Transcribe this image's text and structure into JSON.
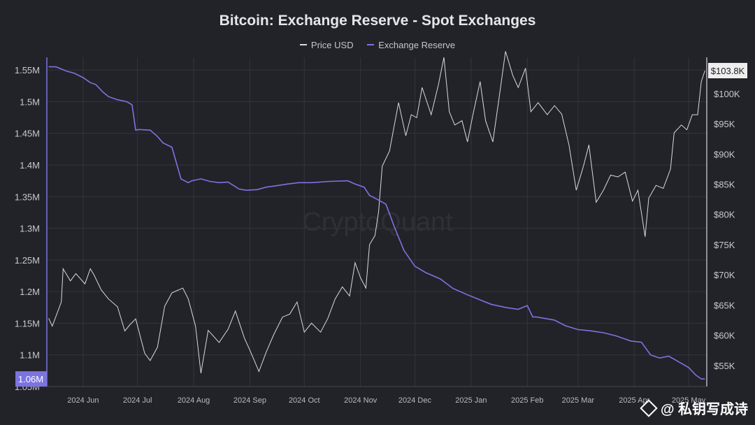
{
  "chart_data": {
    "type": "line",
    "title": "Bitcoin: Exchange Reserve - Spot Exchanges",
    "legend": {
      "placement": "top-center",
      "entries": [
        "Price USD",
        "Exchange Reserve"
      ]
    },
    "colors": {
      "price": "#d9d9dd",
      "reserve": "#7b74e0",
      "background": "#222229",
      "grid": "#34343c"
    },
    "x_ticks": [
      "2024 Jun",
      "2024 Jul",
      "2024 Aug",
      "2024 Sep",
      "2024 Oct",
      "2024 Nov",
      "2024 Dec",
      "2025 Jan",
      "2025 Feb",
      "2025 Mar",
      "2025 Apr",
      "2025 May"
    ],
    "left_axis": {
      "ylim": [
        1050000,
        1570000
      ],
      "ticks": [
        1050000,
        1100000,
        1150000,
        1200000,
        1250000,
        1300000,
        1350000,
        1400000,
        1450000,
        1500000,
        1550000
      ],
      "tick_labels": [
        "1.05M",
        "1.1M",
        "1.15M",
        "1.2M",
        "1.25M",
        "1.3M",
        "1.35M",
        "1.4M",
        "1.45M",
        "1.5M",
        "1.55M"
      ]
    },
    "right_axis": {
      "ylim": [
        51500,
        106000
      ],
      "ticks": [
        55000,
        60000,
        65000,
        70000,
        75000,
        80000,
        85000,
        90000,
        95000,
        100000
      ],
      "tick_labels": [
        "$55K",
        "$60K",
        "$65K",
        "$70K",
        "$75K",
        "$80K",
        "$85K",
        "$90K",
        "$95K",
        "$100K"
      ]
    },
    "current_labels": {
      "reserve": "1.06M",
      "price": "$103.8K"
    },
    "grid": true,
    "watermark": "CryptoQuant",
    "series": [
      {
        "name": "Exchange Reserve",
        "axis": "left",
        "x": [
          "2024-05-13",
          "2024-05-17",
          "2024-05-23",
          "2024-05-27",
          "2024-06-01",
          "2024-06-05",
          "2024-06-08",
          "2024-06-12",
          "2024-06-15",
          "2024-06-20",
          "2024-06-25",
          "2024-06-28",
          "2024-06-30",
          "2024-07-02",
          "2024-07-08",
          "2024-07-12",
          "2024-07-15",
          "2024-07-20",
          "2024-07-25",
          "2024-07-29",
          "2024-07-31",
          "2024-08-05",
          "2024-08-10",
          "2024-08-15",
          "2024-08-20",
          "2024-08-26",
          "2024-08-30",
          "2024-09-05",
          "2024-09-10",
          "2024-09-15",
          "2024-09-22",
          "2024-09-28",
          "2024-10-05",
          "2024-10-15",
          "2024-10-25",
          "2024-10-29",
          "2024-11-03",
          "2024-11-06",
          "2024-11-10",
          "2024-11-15",
          "2024-11-20",
          "2024-11-25",
          "2024-12-01",
          "2024-12-07",
          "2024-12-15",
          "2024-12-22",
          "2024-12-30",
          "2025-01-05",
          "2025-01-12",
          "2025-01-20",
          "2025-01-27",
          "2025-02-01",
          "2025-02-04",
          "2025-02-06",
          "2025-02-10",
          "2025-02-16",
          "2025-02-22",
          "2025-03-01",
          "2025-03-08",
          "2025-03-15",
          "2025-03-22",
          "2025-03-30",
          "2025-04-05",
          "2025-04-10",
          "2025-04-15",
          "2025-04-20",
          "2025-04-25",
          "2025-05-01",
          "2025-05-05",
          "2025-05-08",
          "2025-05-10"
        ],
        "values": [
          1555000,
          1555000,
          1548000,
          1545000,
          1538000,
          1530000,
          1527000,
          1515000,
          1508000,
          1503000,
          1500000,
          1495000,
          1455000,
          1456000,
          1455000,
          1445000,
          1435000,
          1428000,
          1378000,
          1372000,
          1375000,
          1378000,
          1374000,
          1372000,
          1373000,
          1362000,
          1360000,
          1361000,
          1365000,
          1367000,
          1370000,
          1372000,
          1372000,
          1374000,
          1375000,
          1370000,
          1365000,
          1352000,
          1346000,
          1338000,
          1300000,
          1265000,
          1240000,
          1230000,
          1220000,
          1205000,
          1195000,
          1188000,
          1180000,
          1175000,
          1172000,
          1178000,
          1160000,
          1160000,
          1158000,
          1155000,
          1146000,
          1140000,
          1138000,
          1135000,
          1130000,
          1122000,
          1120000,
          1100000,
          1095000,
          1098000,
          1090000,
          1080000,
          1068000,
          1062000,
          1062000
        ]
      },
      {
        "name": "Price USD",
        "axis": "right",
        "x": [
          "2024-05-13",
          "2024-05-15",
          "2024-05-20",
          "2024-05-21",
          "2024-05-25",
          "2024-05-28",
          "2024-06-02",
          "2024-06-05",
          "2024-06-07",
          "2024-06-11",
          "2024-06-15",
          "2024-06-20",
          "2024-06-24",
          "2024-06-27",
          "2024-06-30",
          "2024-07-05",
          "2024-07-08",
          "2024-07-12",
          "2024-07-16",
          "2024-07-20",
          "2024-07-26",
          "2024-07-29",
          "2024-08-02",
          "2024-08-05",
          "2024-08-09",
          "2024-08-15",
          "2024-08-20",
          "2024-08-24",
          "2024-08-29",
          "2024-09-01",
          "2024-09-06",
          "2024-09-10",
          "2024-09-14",
          "2024-09-19",
          "2024-09-23",
          "2024-09-27",
          "2024-10-01",
          "2024-10-05",
          "2024-10-10",
          "2024-10-14",
          "2024-10-18",
          "2024-10-22",
          "2024-10-26",
          "2024-10-29",
          "2024-11-01",
          "2024-11-04",
          "2024-11-06",
          "2024-11-09",
          "2024-11-11",
          "2024-11-13",
          "2024-11-17",
          "2024-11-22",
          "2024-11-26",
          "2024-11-29",
          "2024-12-02",
          "2024-12-05",
          "2024-12-10",
          "2024-12-14",
          "2024-12-17",
          "2024-12-20",
          "2024-12-23",
          "2024-12-27",
          "2024-12-30",
          "2025-01-02",
          "2025-01-06",
          "2025-01-09",
          "2025-01-13",
          "2025-01-17",
          "2025-01-20",
          "2025-01-24",
          "2025-01-27",
          "2025-01-31",
          "2025-02-03",
          "2025-02-07",
          "2025-02-12",
          "2025-02-16",
          "2025-02-20",
          "2025-02-24",
          "2025-02-28",
          "2025-03-02",
          "2025-03-04",
          "2025-03-07",
          "2025-03-11",
          "2025-03-15",
          "2025-03-19",
          "2025-03-23",
          "2025-03-27",
          "2025-03-31",
          "2025-04-03",
          "2025-04-07",
          "2025-04-09",
          "2025-04-13",
          "2025-04-17",
          "2025-04-21",
          "2025-04-23",
          "2025-04-27",
          "2025-04-30",
          "2025-05-03",
          "2025-05-06",
          "2025-05-08",
          "2025-05-10"
        ],
        "values": [
          62800,
          61500,
          65500,
          71000,
          69000,
          70200,
          68500,
          71000,
          70000,
          67500,
          66000,
          64700,
          60700,
          61800,
          62700,
          57000,
          55800,
          58000,
          64800,
          67000,
          67800,
          66000,
          61500,
          53700,
          60800,
          58800,
          61000,
          64000,
          59500,
          57500,
          54000,
          57200,
          60000,
          63000,
          63500,
          65500,
          60500,
          62000,
          60500,
          62800,
          66000,
          68000,
          66500,
          72000,
          69500,
          67800,
          75000,
          76500,
          80500,
          88000,
          90500,
          98500,
          93000,
          96500,
          96000,
          101000,
          96500,
          101500,
          106000,
          97000,
          94800,
          95500,
          92000,
          96500,
          102000,
          95500,
          92000,
          100500,
          107000,
          103000,
          101000,
          104200,
          97000,
          98500,
          96500,
          98000,
          96600,
          91500,
          84000,
          86000,
          88000,
          91500,
          82000,
          84000,
          86500,
          86200,
          87000,
          82200,
          84000,
          76300,
          82700,
          84800,
          84300,
          87500,
          93500,
          94800,
          94000,
          96500,
          96500,
          102000,
          103800
        ]
      }
    ]
  },
  "watermark_footer": "@ 私钥写成诗"
}
